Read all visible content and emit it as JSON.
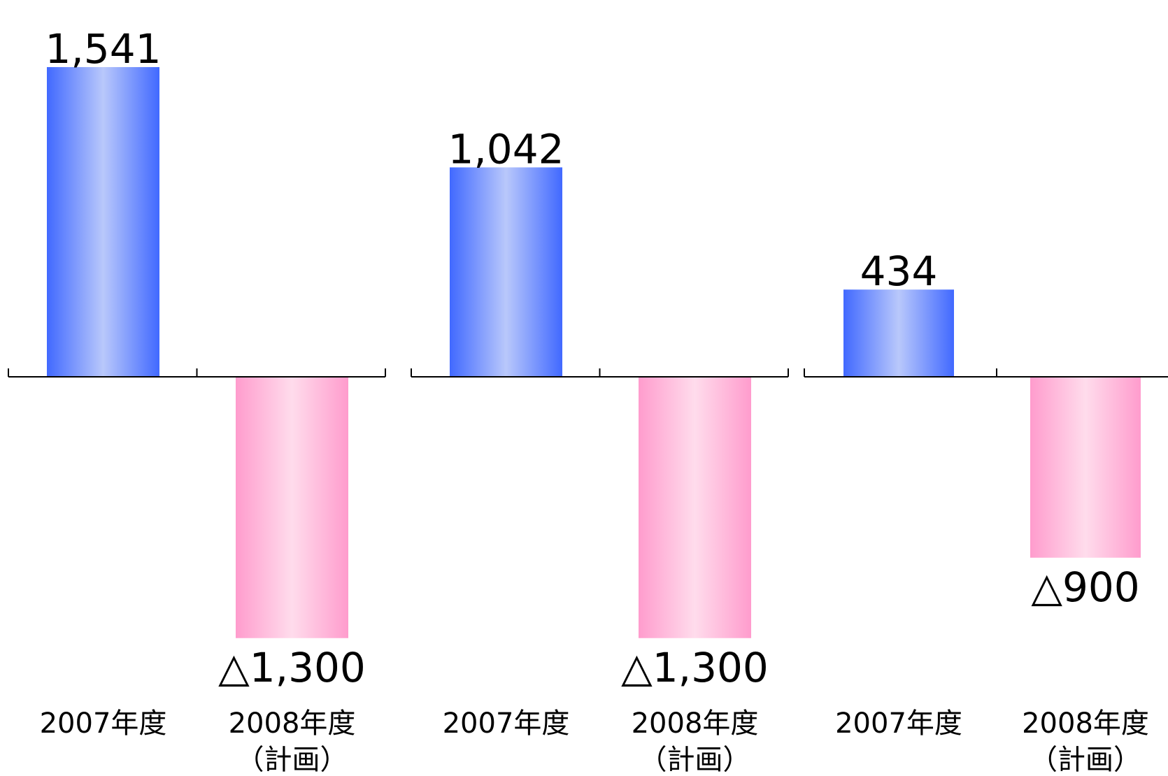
{
  "colors": {
    "positive_edge": "#4169ff",
    "positive_center": "#b9c8fb",
    "negative_edge": "#ff9ccd",
    "negative_center": "#ffdcec",
    "axis": "#000000"
  },
  "chart_data": [
    {
      "type": "bar",
      "categories": [
        [
          "2007年度"
        ],
        [
          "2008年度",
          "（計画）"
        ]
      ],
      "values": [
        1541,
        -1300
      ],
      "data_labels": [
        "1,541",
        "△1,300"
      ],
      "ylim": [
        -1400,
        1600
      ]
    },
    {
      "type": "bar",
      "categories": [
        [
          "2007年度"
        ],
        [
          "2008年度",
          "（計画）"
        ]
      ],
      "values": [
        1042,
        -1300
      ],
      "data_labels": [
        "1,042",
        "△1,300"
      ],
      "ylim": [
        -1400,
        1600
      ]
    },
    {
      "type": "bar",
      "categories": [
        [
          "2007年度"
        ],
        [
          "2008年度",
          "（計画）"
        ]
      ],
      "values": [
        434,
        -900
      ],
      "data_labels": [
        "434",
        "△900"
      ],
      "ylim": [
        -1400,
        1600
      ]
    }
  ]
}
